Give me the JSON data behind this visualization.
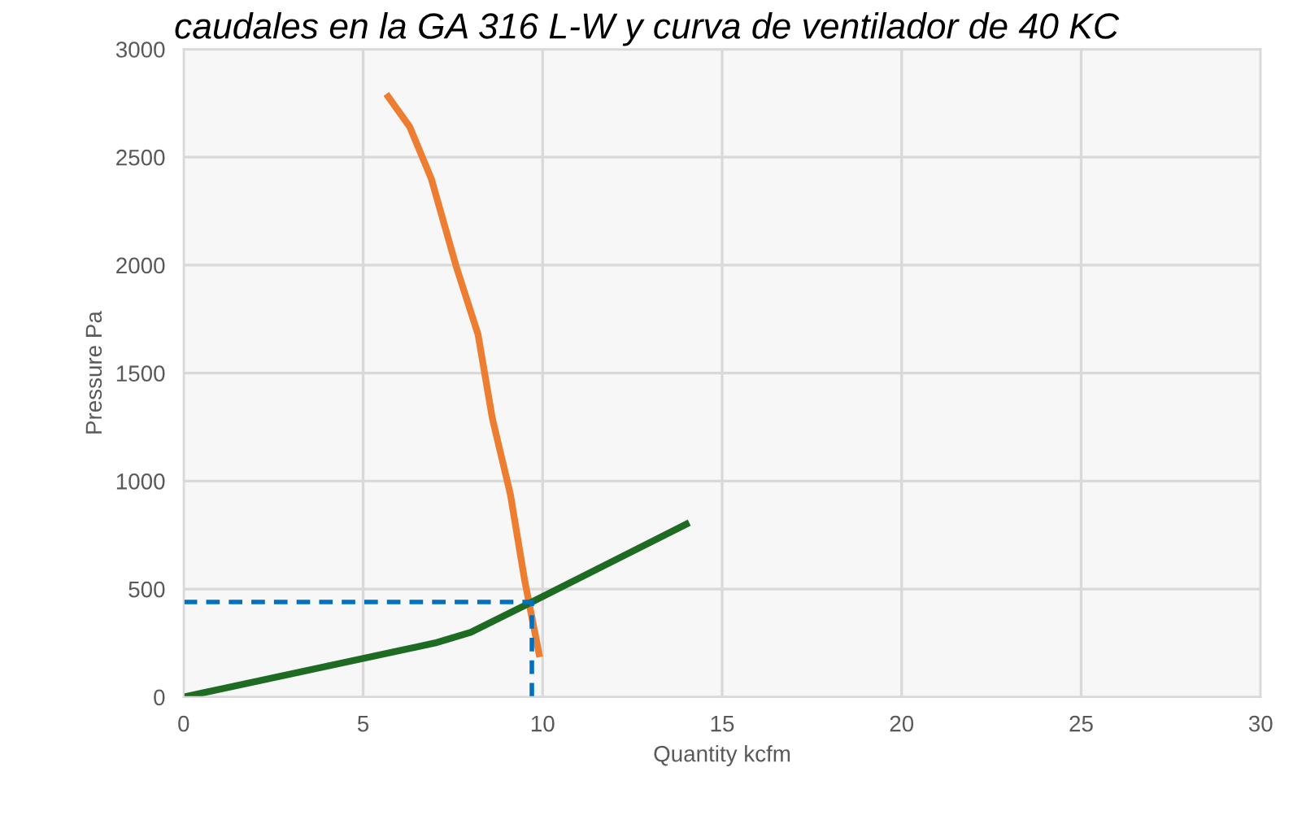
{
  "chart_data": {
    "type": "line",
    "title": "caudales en la GA 316 L-W y curva de ventilador de 40 KC",
    "xlabel": "Quantity kcfm",
    "ylabel": "Pressure Pa",
    "xlim": [
      0,
      30
    ],
    "xticks": [
      0,
      5,
      10,
      15,
      20,
      25,
      30
    ],
    "ylim": [
      0,
      3000
    ],
    "yticks": [
      0,
      500,
      1000,
      1500,
      2000,
      2500,
      3000
    ],
    "grid": true,
    "legend": false,
    "series": [
      {
        "color": "#ed7d31",
        "x": [
          5.7,
          6.3,
          6.9,
          7.6,
          8.2,
          8.6,
          9.1,
          9.5,
          9.9
        ],
        "values": [
          2780,
          2640,
          2400,
          1990,
          1680,
          1290,
          940,
          540,
          200
        ]
      },
      {
        "color": "#1e6b22",
        "x": [
          0,
          7,
          8,
          9.7,
          14
        ],
        "values": [
          0,
          250,
          300,
          440,
          800
        ]
      },
      {
        "color": "#0070c0",
        "line_style": "dashed",
        "x": [
          0,
          9.7,
          9.7
        ],
        "values": [
          440,
          440,
          0
        ]
      }
    ]
  }
}
